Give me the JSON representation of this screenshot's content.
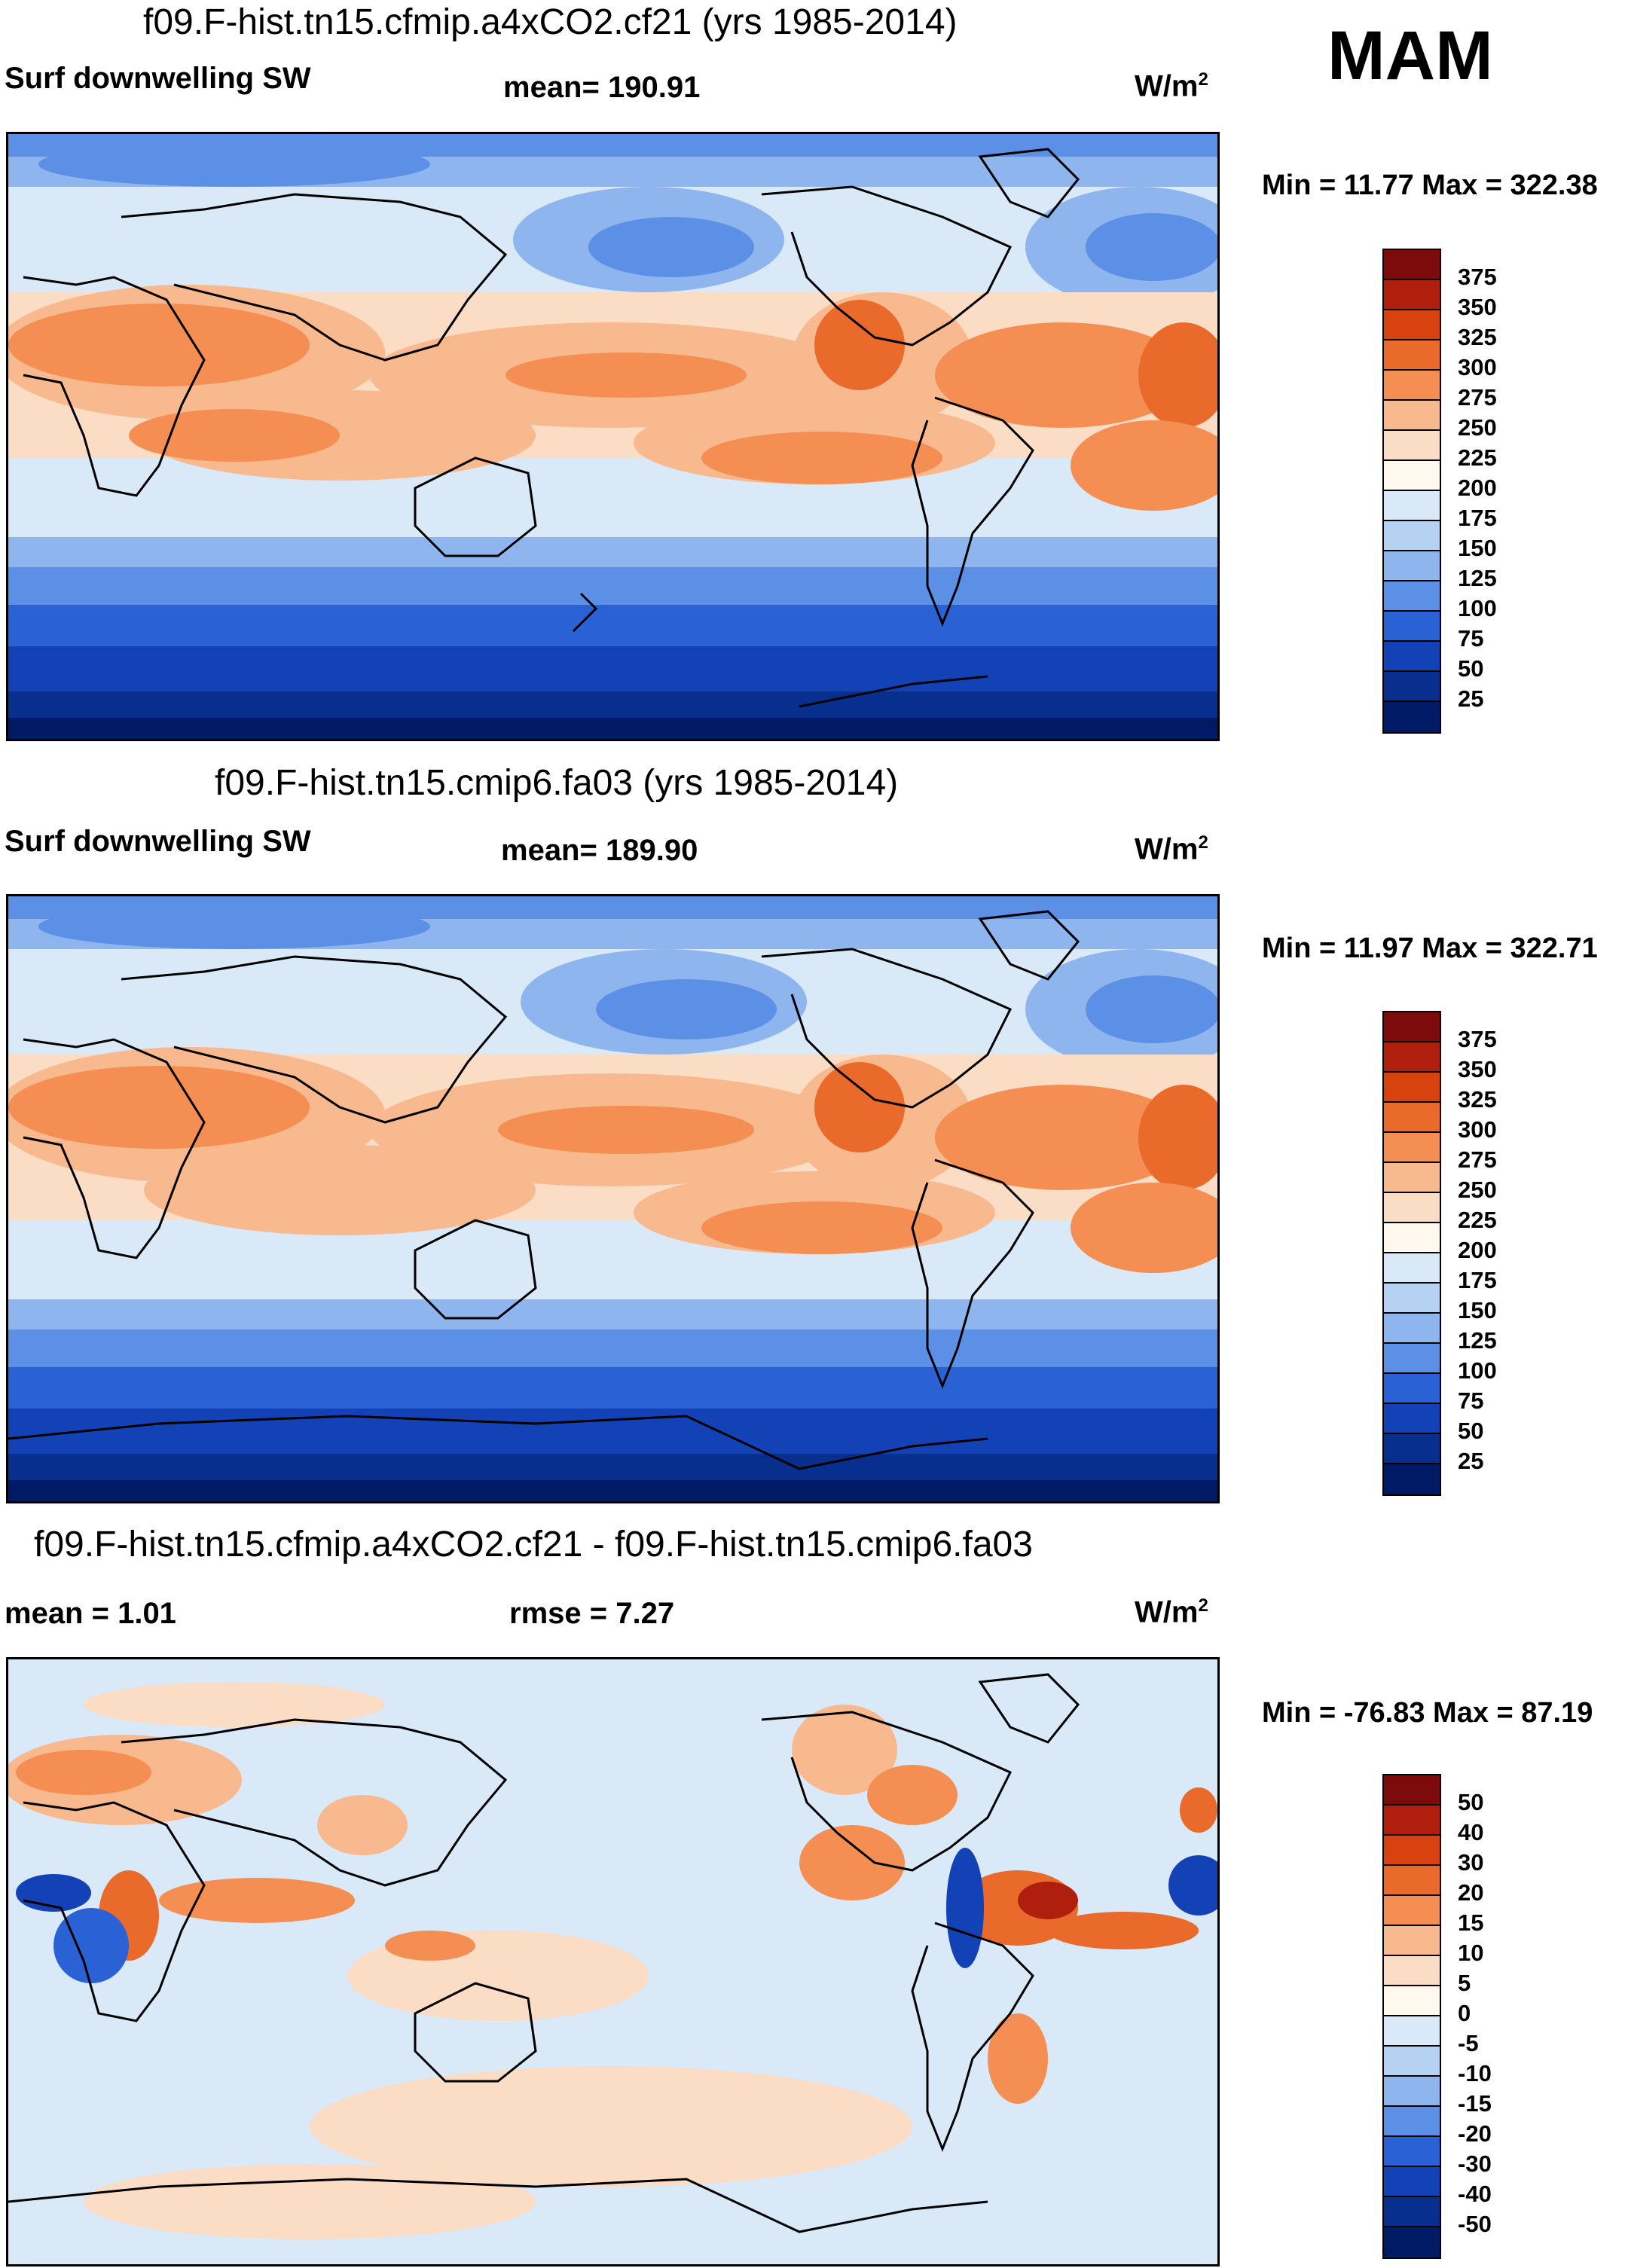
{
  "season": "MAM",
  "panels": [
    {
      "title": "f09.F-hist.tn15.cfmip.a4xCO2.cf21 (yrs 1985-2014)",
      "left_label": "Surf downwelling SW",
      "center_label": "mean= 190.91",
      "units": "W/m",
      "units_sup": "2",
      "minmax": "Min =  11.77 Max = 322.38",
      "ticks": [
        "375",
        "350",
        "325",
        "300",
        "275",
        "250",
        "225",
        "200",
        "175",
        "150",
        "125",
        "100",
        "75",
        "50",
        "25"
      ],
      "colors": [
        "#7d0b0b",
        "#b01e0e",
        "#d8420e",
        "#ea6a2c",
        "#f58e52",
        "#f9b98e",
        "#fbdcc4",
        "#fff8ee",
        "#d9e9f8",
        "#b6d2f3",
        "#8fb5ee",
        "#5c8fe6",
        "#2a62d6",
        "#1242b5",
        "#082e8e",
        "#001a66"
      ]
    },
    {
      "title": "f09.F-hist.tn15.cmip6.fa03 (yrs 1985-2014)",
      "left_label": "Surf downwelling SW",
      "center_label": "mean= 189.90",
      "units": "W/m",
      "units_sup": "2",
      "minmax": "Min =  11.97 Max = 322.71",
      "ticks": [
        "375",
        "350",
        "325",
        "300",
        "275",
        "250",
        "225",
        "200",
        "175",
        "150",
        "125",
        "100",
        "75",
        "50",
        "25"
      ],
      "colors": [
        "#7d0b0b",
        "#b01e0e",
        "#d8420e",
        "#ea6a2c",
        "#f58e52",
        "#f9b98e",
        "#fbdcc4",
        "#fff8ee",
        "#d9e9f8",
        "#b6d2f3",
        "#8fb5ee",
        "#5c8fe6",
        "#2a62d6",
        "#1242b5",
        "#082e8e",
        "#001a66"
      ]
    },
    {
      "title": "f09.F-hist.tn15.cfmip.a4xCO2.cf21 - f09.F-hist.tn15.cmip6.fa03",
      "left_label": "mean =   1.01",
      "center_label": "rmse =    7.27",
      "units": "W/m",
      "units_sup": "2",
      "minmax": "Min = -76.83 Max =  87.19",
      "ticks": [
        "50",
        "40",
        "30",
        "20",
        "15",
        "10",
        "5",
        "0",
        "-5",
        "-10",
        "-15",
        "-20",
        "-30",
        "-40",
        "-50"
      ],
      "colors": [
        "#7d0b0b",
        "#b01e0e",
        "#d8420e",
        "#ea6a2c",
        "#f58e52",
        "#f9b98e",
        "#fbdcc4",
        "#fff8ee",
        "#d9e9f8",
        "#b6d2f3",
        "#8fb5ee",
        "#5c8fe6",
        "#2a62d6",
        "#1242b5",
        "#082e8e",
        "#001a66"
      ]
    }
  ]
}
